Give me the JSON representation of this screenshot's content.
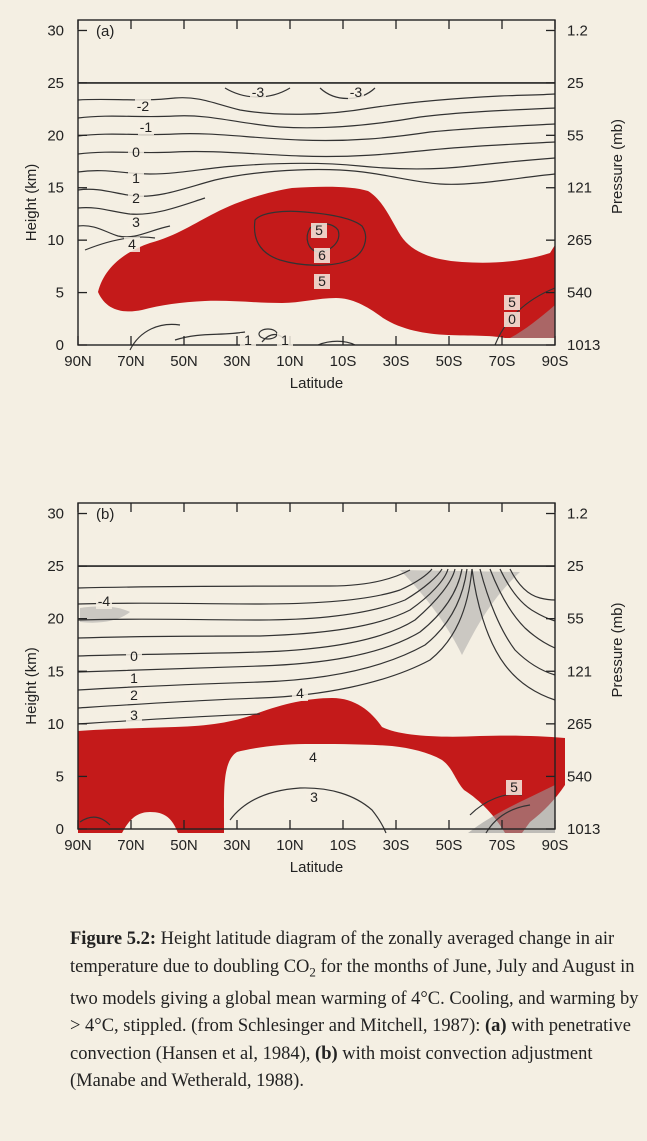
{
  "chart_data": [
    {
      "type": "contour",
      "panel_label": "(a)",
      "x_ticks": [
        "90N",
        "70N",
        "50N",
        "30N",
        "10N",
        "10S",
        "30S",
        "50S",
        "70S",
        "90S"
      ],
      "xlabel": "Latitude",
      "ylabel": "Height (km)",
      "y_ticks": [
        0,
        5,
        10,
        15,
        20,
        25,
        30
      ],
      "ylim": [
        0,
        31
      ],
      "y2label": "Pressure (mb)",
      "y2_ticks": [
        "1013",
        "540",
        "265",
        "121",
        "55",
        "25",
        "1.2"
      ],
      "contour_labels": [
        "-3",
        "-3",
        "-2",
        "-1",
        "0",
        "1",
        "2",
        "3",
        "4",
        "5",
        "6",
        "5",
        "5",
        "0",
        "1",
        "1"
      ],
      "highlight_color": "#c41a1a",
      "stipple_color": "#9a9a9a"
    },
    {
      "type": "contour",
      "panel_label": "(b)",
      "x_ticks": [
        "90N",
        "70N",
        "50N",
        "30N",
        "10N",
        "10S",
        "30S",
        "50S",
        "70S",
        "90S"
      ],
      "xlabel": "Latitude",
      "ylabel": "Height (km)",
      "y_ticks": [
        0,
        5,
        10,
        15,
        20,
        25,
        30
      ],
      "ylim": [
        0,
        31
      ],
      "y2label": "Pressure (mb)",
      "y2_ticks": [
        "1013",
        "540",
        "265",
        "121",
        "55",
        "25",
        "1.2"
      ],
      "contour_labels": [
        "-4",
        "0",
        "1",
        "2",
        "3",
        "4",
        "4",
        "3",
        "5"
      ],
      "highlight_color": "#c41a1a",
      "stipple_color": "#9a9a9a"
    }
  ],
  "caption": {
    "figure_label": "Figure 5.2:",
    "text_1": "Height latitude diagram of the zonally averaged change in air temperature due to doubling CO",
    "sub": "2",
    "text_2": " for the months of June, July and August in two models giving a global mean warming of 4°C. Cooling, and warming by > 4°C, stippled. (from Schlesinger and Mitchell, 1987): ",
    "a_label": "(a)",
    "text_3": " with penetrative convection (Hansen et al, 1984), ",
    "b_label": "(b)",
    "text_4": " with moist convection adjustment (Manabe and Wetherald, 1988)."
  }
}
